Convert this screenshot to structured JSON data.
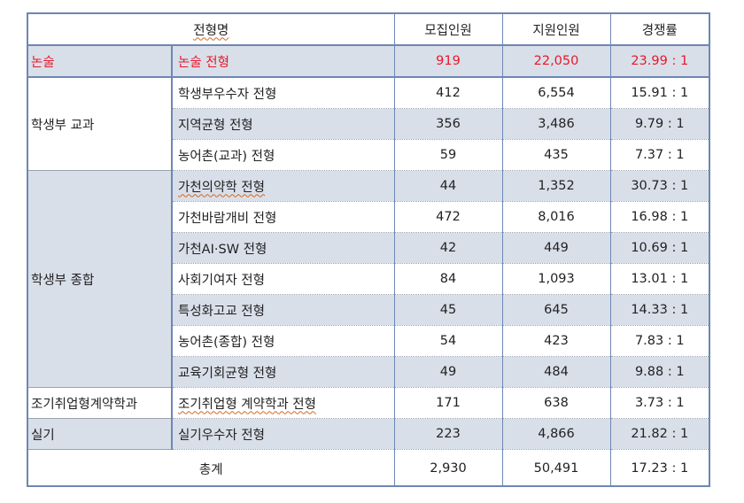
{
  "header": {
    "category": "전형명",
    "recruit": "모집인원",
    "applicants": "지원인원",
    "ratio": "경쟁률"
  },
  "groups": {
    "essay": "논술",
    "record_subject": "학생부 교과",
    "record_comprehensive": "학생부 종합",
    "early_employment": "조기취업형계약학과",
    "practical": "실기"
  },
  "rows": [
    {
      "name": "논술 전형",
      "recruit": "919",
      "applicants": "22,050",
      "ratio": "23.99 : 1"
    },
    {
      "name": "학생부우수자 전형",
      "recruit": "412",
      "applicants": "6,554",
      "ratio": "15.91 : 1"
    },
    {
      "name": "지역균형 전형",
      "recruit": "356",
      "applicants": "3,486",
      "ratio": "9.79 : 1"
    },
    {
      "name": "농어촌(교과) 전형",
      "recruit": "59",
      "applicants": "435",
      "ratio": "7.37 : 1"
    },
    {
      "name": "가천의약학 전형",
      "recruit": "44",
      "applicants": "1,352",
      "ratio": "30.73 : 1"
    },
    {
      "name": "가천바람개비 전형",
      "recruit": "472",
      "applicants": "8,016",
      "ratio": "16.98 : 1"
    },
    {
      "name": "가천AI·SW 전형",
      "recruit": "42",
      "applicants": "449",
      "ratio": "10.69 : 1"
    },
    {
      "name": "사회기여자 전형",
      "recruit": "84",
      "applicants": "1,093",
      "ratio": "13.01 : 1"
    },
    {
      "name": "특성화고교 전형",
      "recruit": "45",
      "applicants": "645",
      "ratio": "14.33 : 1"
    },
    {
      "name": "농어촌(종합) 전형",
      "recruit": "54",
      "applicants": "423",
      "ratio": "7.83 : 1"
    },
    {
      "name": "교육기회균형 전형",
      "recruit": "49",
      "applicants": "484",
      "ratio": "9.88 : 1"
    },
    {
      "name": "조기취업형 계약학과 전형",
      "recruit": "171",
      "applicants": "638",
      "ratio": "3.73 : 1"
    },
    {
      "name": "실기우수자 전형",
      "recruit": "223",
      "applicants": "4,866",
      "ratio": "21.82 : 1"
    }
  ],
  "total": {
    "label": "총계",
    "recruit": "2,930",
    "applicants": "50,491",
    "ratio": "17.23 : 1"
  },
  "colors": {
    "border": "#6d87b5",
    "shade": "#d9dfe9",
    "highlight": "#e8182a"
  }
}
